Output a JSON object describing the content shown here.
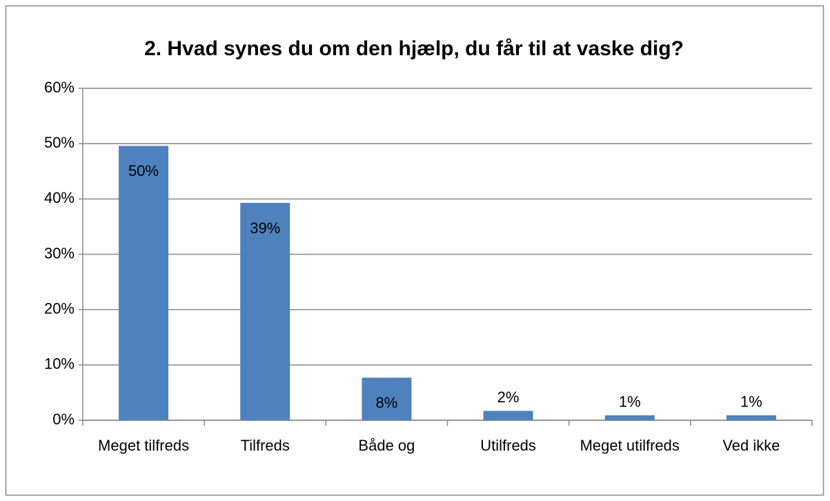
{
  "chart_data": {
    "type": "bar",
    "title": "2. Hvad synes du om den hjælp, du får til at vaske dig?",
    "categories": [
      "Meget tilfreds",
      "Tilfreds",
      "Både og",
      "Utilfreds",
      "Meget utilfreds",
      "Ved ikke"
    ],
    "values": [
      49.6,
      39.3,
      7.7,
      1.7,
      0.9,
      0.9
    ],
    "value_labels": [
      "50%",
      "39%",
      "8%",
      "2%",
      "1%",
      "1%"
    ],
    "color": "#4f81bd",
    "ylim": [
      0,
      60
    ],
    "yticks": [
      {
        "value": 0,
        "label": "0%"
      },
      {
        "value": 10,
        "label": "10%"
      },
      {
        "value": 20,
        "label": "20%"
      },
      {
        "value": 30,
        "label": "30%"
      },
      {
        "value": 40,
        "label": "40%"
      },
      {
        "value": 50,
        "label": "50%"
      },
      {
        "value": 60,
        "label": "60%"
      }
    ],
    "grid": true
  }
}
